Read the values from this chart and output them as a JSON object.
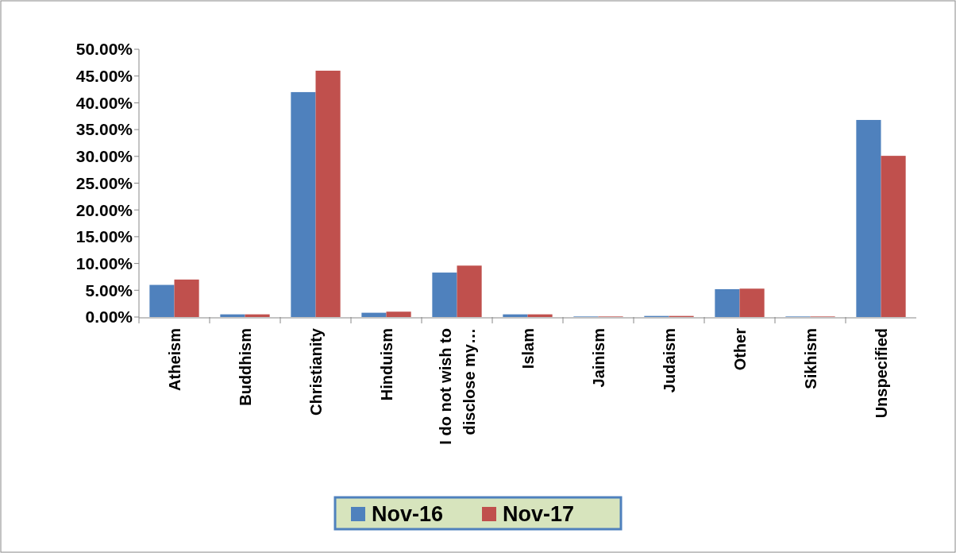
{
  "chart_data": {
    "type": "bar",
    "categories": [
      "Atheism",
      "Buddhism",
      "Christianity",
      "Hinduism",
      "I do not wish to disclose my…",
      "Islam",
      "Jainism",
      "Judaism",
      "Other",
      "Sikhism",
      "Unspecified"
    ],
    "series": [
      {
        "name": "Nov-16",
        "color": "#4f81bd",
        "values": [
          6.0,
          0.5,
          42.0,
          0.8,
          8.3,
          0.5,
          0.1,
          0.2,
          5.2,
          0.1,
          36.8
        ]
      },
      {
        "name": "Nov-17",
        "color": "#c0504d",
        "values": [
          7.0,
          0.5,
          46.0,
          1.0,
          9.6,
          0.5,
          0.1,
          0.2,
          5.3,
          0.1,
          30.1
        ]
      }
    ],
    "ylim": [
      0,
      50
    ],
    "yticks": [
      {
        "value": 0,
        "label": "0.00%"
      },
      {
        "value": 5,
        "label": "5.00%"
      },
      {
        "value": 10,
        "label": "10.00%"
      },
      {
        "value": 15,
        "label": "15.00%"
      },
      {
        "value": 20,
        "label": "20.00%"
      },
      {
        "value": 25,
        "label": "25.00%"
      },
      {
        "value": 30,
        "label": "30.00%"
      },
      {
        "value": 35,
        "label": "35.00%"
      },
      {
        "value": 40,
        "label": "40.00%"
      },
      {
        "value": 45,
        "label": "45.00%"
      },
      {
        "value": 50,
        "label": "50.00%"
      }
    ],
    "grid": false,
    "legend": "bottom"
  }
}
